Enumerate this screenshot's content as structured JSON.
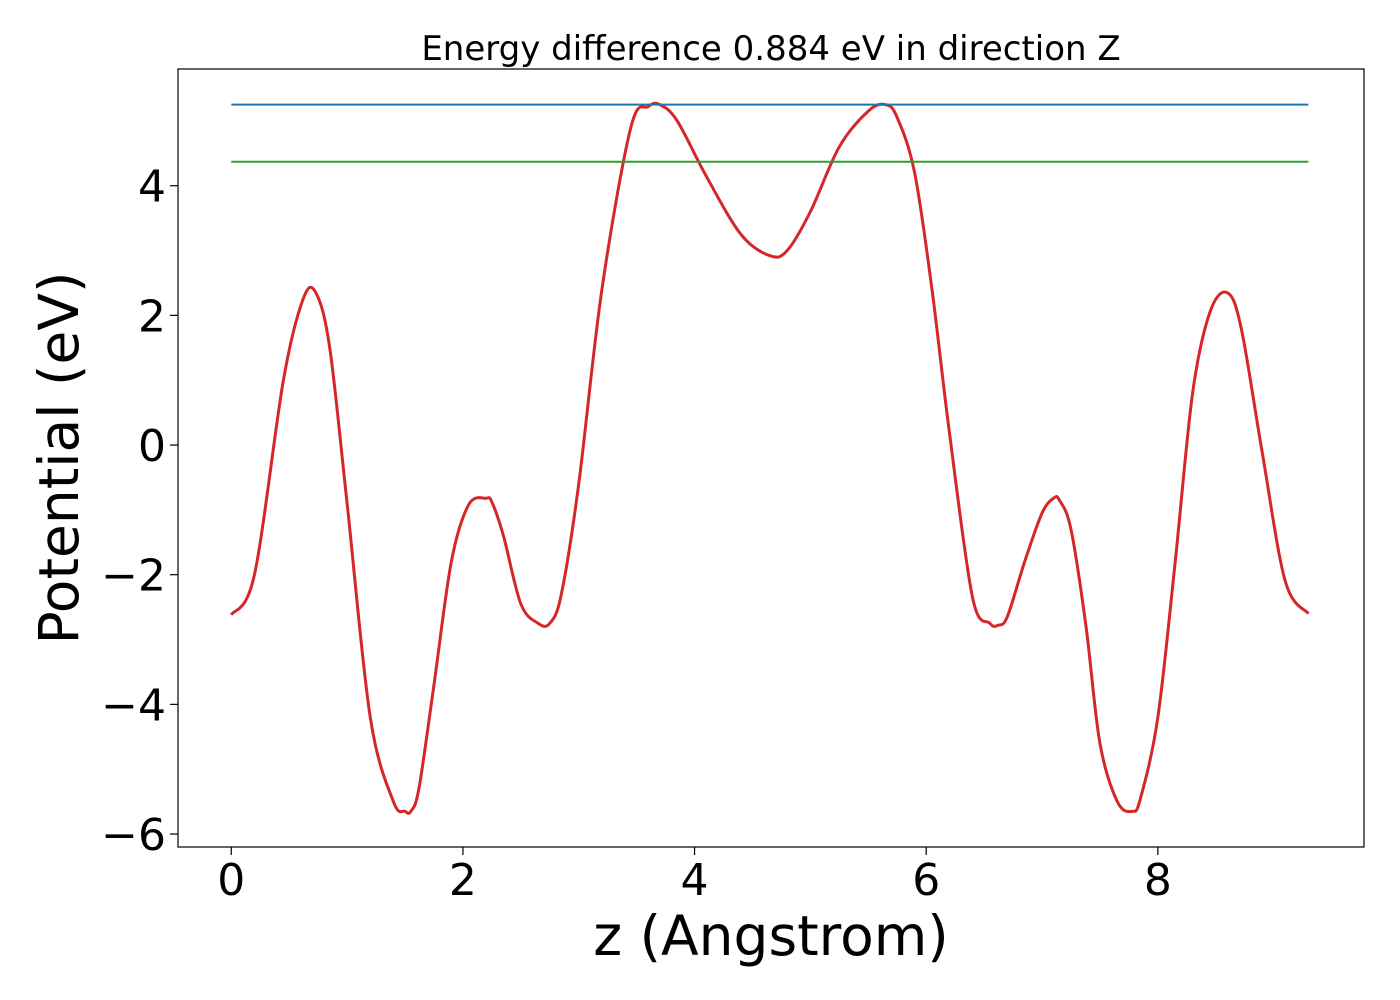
{
  "chart_data": {
    "type": "line",
    "title": "Energy difference 0.884 eV in direction Z",
    "xlabel": "z (Angstrom)",
    "ylabel": "Potential (eV)",
    "xlim": [
      -0.46,
      9.78
    ],
    "ylim": [
      -6.2,
      5.8
    ],
    "xticks": [
      0,
      2,
      4,
      6,
      8
    ],
    "xtick_labels": [
      "0",
      "2",
      "4",
      "6",
      "8"
    ],
    "yticks": [
      -6,
      -4,
      -2,
      0,
      2,
      4
    ],
    "ytick_labels": [
      "−6",
      "−4",
      "−2",
      "0",
      "2",
      "4"
    ],
    "grid": false,
    "series": [
      {
        "color": "#d62728",
        "x": [
          0.0,
          0.2,
          0.45,
          0.62,
          0.73,
          0.85,
          1.0,
          1.2,
          1.4,
          1.5,
          1.55,
          1.62,
          1.75,
          1.9,
          2.05,
          2.2,
          2.25,
          2.35,
          2.5,
          2.65,
          2.75,
          2.85,
          3.0,
          3.2,
          3.45,
          3.6,
          3.7,
          3.85,
          4.1,
          4.4,
          4.65,
          4.8,
          5.0,
          5.25,
          5.5,
          5.65,
          5.75,
          5.9,
          6.05,
          6.2,
          6.4,
          6.55,
          6.62,
          6.7,
          6.85,
          7.0,
          7.1,
          7.15,
          7.25,
          7.38,
          7.5,
          7.65,
          7.78,
          7.85,
          8.0,
          8.15,
          8.3,
          8.45,
          8.6,
          8.72,
          8.9,
          9.1,
          9.3
        ],
        "y": [
          -2.62,
          -2.0,
          1.0,
          2.25,
          2.35,
          1.5,
          -0.9,
          -4.2,
          -5.5,
          -5.65,
          -5.65,
          -5.3,
          -3.7,
          -1.8,
          -0.92,
          -0.82,
          -0.88,
          -1.4,
          -2.45,
          -2.75,
          -2.75,
          -2.3,
          -0.6,
          2.4,
          4.9,
          5.22,
          5.25,
          5.0,
          4.15,
          3.25,
          2.92,
          3.0,
          3.6,
          4.6,
          5.15,
          5.25,
          5.05,
          4.2,
          2.4,
          0.2,
          -2.35,
          -2.75,
          -2.78,
          -2.65,
          -1.8,
          -1.05,
          -0.82,
          -0.85,
          -1.3,
          -2.8,
          -4.6,
          -5.5,
          -5.65,
          -5.45,
          -4.2,
          -1.8,
          0.8,
          2.05,
          2.35,
          1.8,
          -0.1,
          -2.1,
          -2.6
        ]
      },
      {
        "color": "#1f77b4",
        "x": [
          0.0,
          9.3
        ],
        "y": [
          5.25,
          5.25
        ]
      },
      {
        "color": "#2ca02c",
        "x": [
          0.0,
          9.3
        ],
        "y": [
          4.37,
          4.37
        ]
      }
    ]
  }
}
